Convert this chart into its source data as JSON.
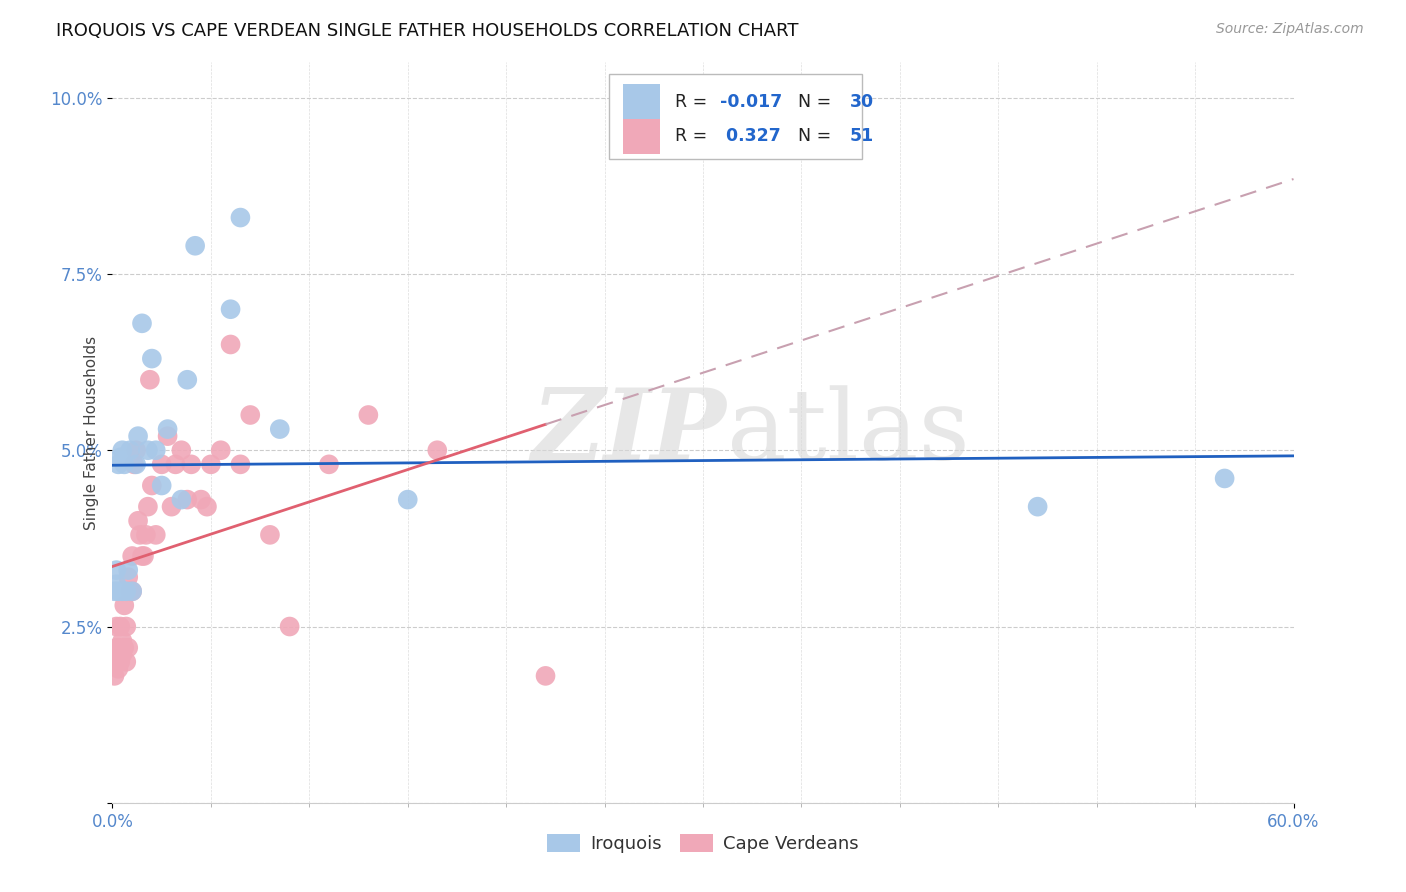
{
  "title": "IROQUOIS VS CAPE VERDEAN SINGLE FATHER HOUSEHOLDS CORRELATION CHART",
  "source": "Source: ZipAtlas.com",
  "ylabel": "Single Father Households",
  "watermark": "ZIPatlas",
  "xlim": [
    0.0,
    0.6
  ],
  "ylim": [
    0.0,
    0.105
  ],
  "xtick_positions": [
    0.0,
    0.6
  ],
  "xtick_labels": [
    "0.0%",
    "60.0%"
  ],
  "ytick_positions": [
    0.0,
    0.025,
    0.05,
    0.075,
    0.1
  ],
  "ytick_labels": [
    "",
    "2.5%",
    "5.0%",
    "7.5%",
    "10.0%"
  ],
  "iroquois_color": "#a8c8e8",
  "cape_verdean_color": "#f0a8b8",
  "trend_iroquois_color": "#2060c0",
  "trend_cape_verdean_solid_color": "#e06070",
  "trend_cape_verdean_dash_color": "#c8a0b0",
  "legend_iroquois": "Iroquois",
  "legend_cape_verdean": "Cape Verdeans",
  "iroquois_R": -0.017,
  "iroquois_N": 30,
  "cape_verdean_R": 0.327,
  "cape_verdean_N": 51,
  "iroquois_x": [
    0.001,
    0.002,
    0.002,
    0.003,
    0.003,
    0.004,
    0.005,
    0.005,
    0.006,
    0.007,
    0.008,
    0.009,
    0.01,
    0.012,
    0.013,
    0.015,
    0.018,
    0.02,
    0.022,
    0.025,
    0.028,
    0.035,
    0.038,
    0.042,
    0.06,
    0.065,
    0.085,
    0.15,
    0.47,
    0.565
  ],
  "iroquois_y": [
    0.03,
    0.031,
    0.033,
    0.03,
    0.048,
    0.049,
    0.03,
    0.05,
    0.048,
    0.03,
    0.033,
    0.05,
    0.03,
    0.048,
    0.052,
    0.068,
    0.05,
    0.063,
    0.05,
    0.045,
    0.053,
    0.043,
    0.06,
    0.079,
    0.07,
    0.083,
    0.053,
    0.043,
    0.042,
    0.046
  ],
  "cape_verdean_x": [
    0.001,
    0.001,
    0.002,
    0.002,
    0.002,
    0.003,
    0.003,
    0.004,
    0.004,
    0.005,
    0.005,
    0.006,
    0.006,
    0.007,
    0.007,
    0.008,
    0.008,
    0.009,
    0.01,
    0.01,
    0.011,
    0.012,
    0.013,
    0.014,
    0.015,
    0.016,
    0.017,
    0.018,
    0.019,
    0.02,
    0.022,
    0.025,
    0.028,
    0.03,
    0.032,
    0.035,
    0.038,
    0.04,
    0.045,
    0.048,
    0.05,
    0.055,
    0.06,
    0.065,
    0.07,
    0.08,
    0.09,
    0.11,
    0.13,
    0.165,
    0.22
  ],
  "cape_verdean_y": [
    0.018,
    0.021,
    0.02,
    0.022,
    0.025,
    0.019,
    0.022,
    0.02,
    0.025,
    0.021,
    0.023,
    0.022,
    0.028,
    0.02,
    0.025,
    0.022,
    0.032,
    0.03,
    0.035,
    0.03,
    0.048,
    0.05,
    0.04,
    0.038,
    0.035,
    0.035,
    0.038,
    0.042,
    0.06,
    0.045,
    0.038,
    0.048,
    0.052,
    0.042,
    0.048,
    0.05,
    0.043,
    0.048,
    0.043,
    0.042,
    0.048,
    0.05,
    0.065,
    0.048,
    0.055,
    0.038,
    0.025,
    0.048,
    0.055,
    0.05,
    0.018
  ]
}
